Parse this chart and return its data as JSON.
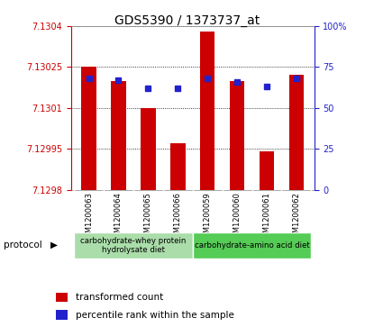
{
  "title": "GDS5390 / 1373737_at",
  "samples": [
    "GSM1200063",
    "GSM1200064",
    "GSM1200065",
    "GSM1200066",
    "GSM1200059",
    "GSM1200060",
    "GSM1200061",
    "GSM1200062"
  ],
  "transformed_counts": [
    7.13025,
    7.1302,
    7.1301,
    7.12997,
    7.13038,
    7.1302,
    7.12994,
    7.13022
  ],
  "percentile_ranks": [
    68,
    67,
    62,
    62,
    68,
    66,
    63,
    68
  ],
  "ylim_left": [
    7.1298,
    7.1304
  ],
  "ylim_right": [
    0,
    100
  ],
  "yticks_left": [
    7.1298,
    7.12995,
    7.1301,
    7.13025,
    7.1304
  ],
  "ytick_left_labels": [
    "7.1298",
    "7.12995",
    "7.1301",
    "7.13025",
    "7.1304"
  ],
  "yticks_right": [
    0,
    25,
    50,
    75,
    100
  ],
  "ytick_right_labels": [
    "0",
    "25",
    "50",
    "75",
    "100%"
  ],
  "bar_color": "#cc0000",
  "dot_color": "#2222cc",
  "bar_bottom": 7.1298,
  "group1_indices": [
    0,
    1,
    2,
    3
  ],
  "group1_label": "carbohydrate-whey protein\nhydrolysate diet",
  "group1_color": "#aaddaa",
  "group2_indices": [
    4,
    5,
    6,
    7
  ],
  "group2_label": "carbohydrate-amino acid diet",
  "group2_color": "#55cc55",
  "left_tick_color": "#cc0000",
  "right_tick_color": "#2222cc",
  "xtick_bg": "#cccccc",
  "plot_bg": "#ffffff",
  "legend_red_label": "transformed count",
  "legend_blue_label": "percentile rank within the sample",
  "protocol_label": "protocol"
}
